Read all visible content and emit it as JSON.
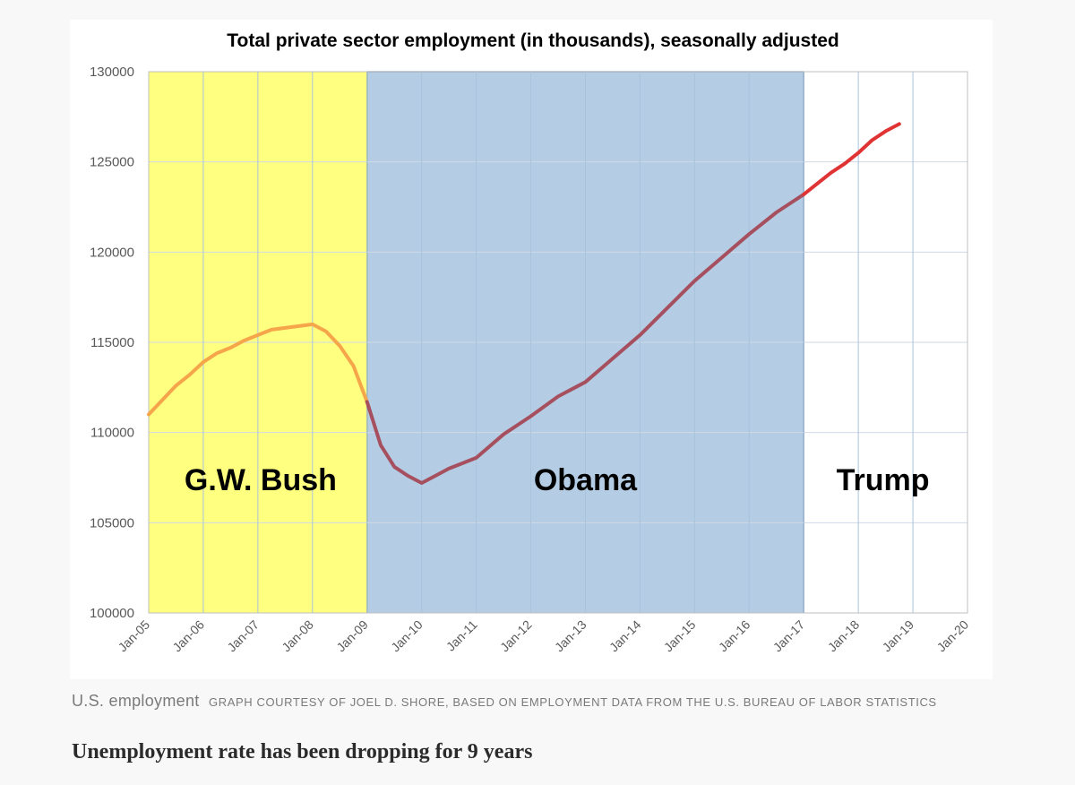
{
  "chart_data": {
    "type": "line",
    "title": "Total private sector employment (in thousands), seasonally adjusted",
    "xlabel": "",
    "ylabel": "",
    "x_ticks": [
      "Jan-05",
      "Jan-06",
      "Jan-07",
      "Jan-08",
      "Jan-09",
      "Jan-10",
      "Jan-11",
      "Jan-12",
      "Jan-13",
      "Jan-14",
      "Jan-15",
      "Jan-16",
      "Jan-17",
      "Jan-18",
      "Jan-19",
      "Jan-20"
    ],
    "y_ticks": [
      "100000",
      "105000",
      "110000",
      "115000",
      "120000",
      "125000",
      "130000"
    ],
    "xlim": [
      2005,
      2020
    ],
    "ylim": [
      100000,
      130000
    ],
    "grid": true,
    "regions": [
      {
        "name": "G.W. Bush",
        "start": 2005,
        "end": 2009,
        "color": "#ffff80"
      },
      {
        "name": "Obama",
        "start": 2009,
        "end": 2017,
        "color": "#b4cde4"
      },
      {
        "name": "Trump",
        "start": 2017,
        "end": 2020,
        "color": "#ffffff"
      }
    ],
    "series": [
      {
        "name": "Bush era",
        "color": "#f5a54a",
        "x": [
          2005.0,
          2005.25,
          2005.5,
          2005.75,
          2006.0,
          2006.25,
          2006.5,
          2006.75,
          2007.0,
          2007.25,
          2007.5,
          2007.75,
          2008.0,
          2008.25,
          2008.5,
          2008.75,
          2009.0
        ],
        "values": [
          111000,
          111800,
          112600,
          113200,
          113900,
          114400,
          114700,
          115100,
          115400,
          115700,
          115800,
          115900,
          116000,
          115600,
          114800,
          113700,
          111700
        ]
      },
      {
        "name": "Obama era",
        "color": "#a6505f",
        "x": [
          2009.0,
          2009.25,
          2009.5,
          2009.75,
          2010.0,
          2010.25,
          2010.5,
          2010.75,
          2011.0,
          2011.5,
          2012.0,
          2012.5,
          2013.0,
          2013.5,
          2014.0,
          2014.5,
          2015.0,
          2015.5,
          2016.0,
          2016.5,
          2017.0
        ],
        "values": [
          111700,
          109300,
          108100,
          107600,
          107200,
          107600,
          108000,
          108300,
          108600,
          109900,
          110900,
          112000,
          112800,
          114100,
          115400,
          116900,
          118400,
          119700,
          121000,
          122200,
          123200
        ]
      },
      {
        "name": "Trump era",
        "color": "#e03434",
        "x": [
          2017.0,
          2017.25,
          2017.5,
          2017.75,
          2018.0,
          2018.25,
          2018.5,
          2018.75
        ],
        "values": [
          123200,
          123800,
          124400,
          124900,
          125500,
          126200,
          126700,
          127100
        ]
      }
    ]
  },
  "caption": {
    "main": "U.S. employment",
    "credit": "GRAPH COURTESY OF JOEL D. SHORE, BASED ON EMPLOYMENT DATA FROM THE U.S. BUREAU OF LABOR STATISTICS"
  },
  "heading": "Unemployment rate has been dropping for 9 years",
  "colors": {
    "grid": "#cfd9e6",
    "axis_text": "#595959"
  }
}
